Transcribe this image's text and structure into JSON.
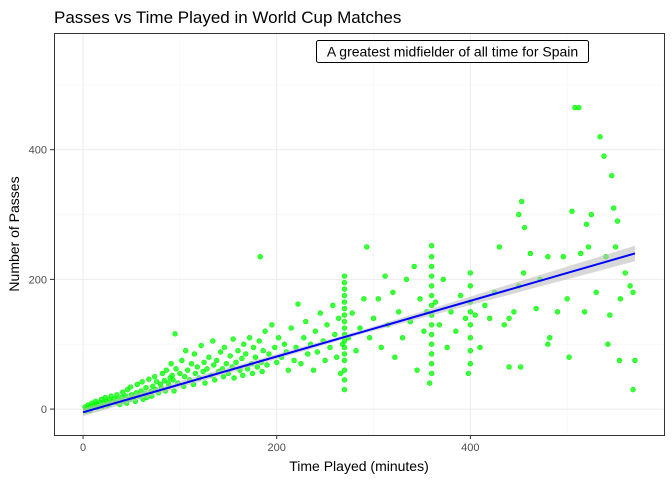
{
  "chart_data": {
    "type": "scatter",
    "title": "Passes vs Time Played in World Cup Matches",
    "xlabel": "Time Played (minutes)",
    "ylabel": "Number of Passes",
    "xlim": [
      -30,
      600
    ],
    "ylim": [
      -40,
      580
    ],
    "x_ticks": [
      0,
      200,
      400
    ],
    "y_ticks": [
      0,
      200,
      400
    ],
    "grid": true,
    "annotation": "A greatest midfielder of all time for Spain",
    "point_color": "#00ff00",
    "trend_color": "#0000ff",
    "band_color": "#bebebe",
    "trend": {
      "x": [
        0,
        570
      ],
      "y": [
        -5,
        240
      ]
    },
    "band_halfwidth": {
      "at_x": [
        0,
        285,
        570
      ],
      "value": [
        6,
        3,
        12
      ]
    },
    "points": [
      [
        2,
        3
      ],
      [
        4,
        0
      ],
      [
        3,
        -3
      ],
      [
        5,
        6
      ],
      [
        6,
        1
      ],
      [
        8,
        4
      ],
      [
        7,
        -2
      ],
      [
        10,
        5
      ],
      [
        9,
        9
      ],
      [
        12,
        3
      ],
      [
        14,
        8
      ],
      [
        15,
        2
      ],
      [
        13,
        12
      ],
      [
        16,
        6
      ],
      [
        18,
        10
      ],
      [
        20,
        4
      ],
      [
        19,
        15
      ],
      [
        22,
        9
      ],
      [
        24,
        12
      ],
      [
        25,
        6
      ],
      [
        23,
        18
      ],
      [
        27,
        14
      ],
      [
        28,
        8
      ],
      [
        30,
        11
      ],
      [
        29,
        20
      ],
      [
        32,
        16
      ],
      [
        34,
        10
      ],
      [
        35,
        22
      ],
      [
        36,
        14
      ],
      [
        38,
        7
      ],
      [
        40,
        18
      ],
      [
        42,
        12
      ],
      [
        41,
        26
      ],
      [
        44,
        20
      ],
      [
        45,
        9
      ],
      [
        46,
        30
      ],
      [
        48,
        15
      ],
      [
        50,
        22
      ],
      [
        49,
        34
      ],
      [
        52,
        18
      ],
      [
        54,
        12
      ],
      [
        55,
        25
      ],
      [
        56,
        38
      ],
      [
        58,
        20
      ],
      [
        60,
        28
      ],
      [
        62,
        15
      ],
      [
        61,
        42
      ],
      [
        64,
        24
      ],
      [
        65,
        33
      ],
      [
        66,
        18
      ],
      [
        68,
        46
      ],
      [
        70,
        27
      ],
      [
        72,
        35
      ],
      [
        71,
        20
      ],
      [
        74,
        50
      ],
      [
        75,
        30
      ],
      [
        76,
        42
      ],
      [
        78,
        25
      ],
      [
        80,
        38
      ],
      [
        82,
        55
      ],
      [
        81,
        32
      ],
      [
        84,
        44
      ],
      [
        85,
        28
      ],
      [
        86,
        60
      ],
      [
        88,
        40
      ],
      [
        90,
        48
      ],
      [
        89,
        35
      ],
      [
        91,
        70
      ],
      [
        92,
        52
      ],
      [
        93,
        45
      ],
      [
        95,
        116
      ],
      [
        94,
        28
      ],
      [
        96,
        62
      ],
      [
        98,
        40
      ],
      [
        100,
        55
      ],
      [
        102,
        75
      ],
      [
        104,
        35
      ],
      [
        105,
        50
      ],
      [
        106,
        90
      ],
      [
        108,
        60
      ],
      [
        110,
        45
      ],
      [
        112,
        70
      ],
      [
        114,
        38
      ],
      [
        115,
        85
      ],
      [
        116,
        55
      ],
      [
        118,
        65
      ],
      [
        120,
        48
      ],
      [
        122,
        98
      ],
      [
        124,
        58
      ],
      [
        125,
        72
      ],
      [
        126,
        40
      ],
      [
        128,
        62
      ],
      [
        130,
        80
      ],
      [
        132,
        52
      ],
      [
        134,
        105
      ],
      [
        135,
        68
      ],
      [
        136,
        45
      ],
      [
        138,
        75
      ],
      [
        140,
        58
      ],
      [
        142,
        88
      ],
      [
        144,
        62
      ],
      [
        145,
        50
      ],
      [
        146,
        95
      ],
      [
        148,
        70
      ],
      [
        150,
        55
      ],
      [
        152,
        82
      ],
      [
        154,
        65
      ],
      [
        155,
        108
      ],
      [
        156,
        48
      ],
      [
        158,
        72
      ],
      [
        160,
        90
      ],
      [
        162,
        60
      ],
      [
        164,
        78
      ],
      [
        165,
        52
      ],
      [
        166,
        100
      ],
      [
        168,
        85
      ],
      [
        170,
        62
      ],
      [
        172,
        110
      ],
      [
        174,
        70
      ],
      [
        175,
        55
      ],
      [
        176,
        95
      ],
      [
        178,
        80
      ],
      [
        180,
        65
      ],
      [
        182,
        105
      ],
      [
        183,
        235
      ],
      [
        184,
        72
      ],
      [
        185,
        58
      ],
      [
        186,
        90
      ],
      [
        188,
        120
      ],
      [
        190,
        68
      ],
      [
        192,
        85
      ],
      [
        195,
        130
      ],
      [
        198,
        95
      ],
      [
        200,
        72
      ],
      [
        202,
        110
      ],
      [
        205,
        80
      ],
      [
        208,
        100
      ],
      [
        210,
        88
      ],
      [
        212,
        60
      ],
      [
        215,
        125
      ],
      [
        218,
        75
      ],
      [
        220,
        95
      ],
      [
        222,
        162
      ],
      [
        225,
        70
      ],
      [
        228,
        110
      ],
      [
        230,
        135
      ],
      [
        232,
        85
      ],
      [
        235,
        100
      ],
      [
        238,
        60
      ],
      [
        240,
        120
      ],
      [
        242,
        88
      ],
      [
        245,
        148
      ],
      [
        248,
        105
      ],
      [
        250,
        75
      ],
      [
        252,
        130
      ],
      [
        255,
        95
      ],
      [
        258,
        160
      ],
      [
        260,
        115
      ],
      [
        262,
        80
      ],
      [
        264,
        140
      ],
      [
        266,
        55
      ],
      [
        268,
        100
      ],
      [
        270,
        30
      ],
      [
        270,
        45
      ],
      [
        270,
        60
      ],
      [
        270,
        75
      ],
      [
        270,
        85
      ],
      [
        270,
        95
      ],
      [
        270,
        105
      ],
      [
        270,
        115
      ],
      [
        270,
        125
      ],
      [
        270,
        135
      ],
      [
        270,
        145
      ],
      [
        270,
        155
      ],
      [
        270,
        165
      ],
      [
        270,
        175
      ],
      [
        270,
        185
      ],
      [
        270,
        195
      ],
      [
        270,
        205
      ],
      [
        274,
        110
      ],
      [
        278,
        148
      ],
      [
        282,
        90
      ],
      [
        286,
        125
      ],
      [
        290,
        170
      ],
      [
        293,
        250
      ],
      [
        296,
        110
      ],
      [
        300,
        140
      ],
      [
        305,
        170
      ],
      [
        308,
        95
      ],
      [
        312,
        205
      ],
      [
        315,
        130
      ],
      [
        320,
        180
      ],
      [
        322,
        80
      ],
      [
        326,
        150
      ],
      [
        330,
        110
      ],
      [
        334,
        200
      ],
      [
        338,
        135
      ],
      [
        342,
        220
      ],
      [
        345,
        60
      ],
      [
        348,
        170
      ],
      [
        352,
        120
      ],
      [
        355,
        150
      ],
      [
        358,
        40
      ],
      [
        360,
        55
      ],
      [
        360,
        70
      ],
      [
        360,
        85
      ],
      [
        360,
        100
      ],
      [
        360,
        115
      ],
      [
        360,
        130
      ],
      [
        360,
        145
      ],
      [
        360,
        160
      ],
      [
        360,
        175
      ],
      [
        360,
        190
      ],
      [
        360,
        205
      ],
      [
        360,
        220
      ],
      [
        360,
        235
      ],
      [
        360,
        252
      ],
      [
        364,
        165
      ],
      [
        368,
        130
      ],
      [
        372,
        200
      ],
      [
        376,
        95
      ],
      [
        380,
        150
      ],
      [
        385,
        120
      ],
      [
        390,
        175
      ],
      [
        395,
        140
      ],
      [
        398,
        55
      ],
      [
        400,
        70
      ],
      [
        400,
        90
      ],
      [
        400,
        110
      ],
      [
        400,
        130
      ],
      [
        400,
        150
      ],
      [
        400,
        165
      ],
      [
        400,
        190
      ],
      [
        400,
        210
      ],
      [
        405,
        145
      ],
      [
        410,
        95
      ],
      [
        415,
        160
      ],
      [
        420,
        140
      ],
      [
        425,
        180
      ],
      [
        430,
        250
      ],
      [
        435,
        130
      ],
      [
        440,
        65
      ],
      [
        440,
        140
      ],
      [
        445,
        150
      ],
      [
        450,
        300
      ],
      [
        450,
        190
      ],
      [
        452,
        65
      ],
      [
        453,
        320
      ],
      [
        455,
        210
      ],
      [
        456,
        280
      ],
      [
        462,
        240
      ],
      [
        468,
        155
      ],
      [
        472,
        200
      ],
      [
        480,
        100
      ],
      [
        480,
        235
      ],
      [
        482,
        110
      ],
      [
        490,
        150
      ],
      [
        496,
        235
      ],
      [
        500,
        170
      ],
      [
        502,
        80
      ],
      [
        505,
        305
      ],
      [
        508,
        465
      ],
      [
        512,
        465
      ],
      [
        514,
        240
      ],
      [
        518,
        150
      ],
      [
        520,
        285
      ],
      [
        522,
        250
      ],
      [
        525,
        300
      ],
      [
        530,
        180
      ],
      [
        534,
        420
      ],
      [
        538,
        390
      ],
      [
        540,
        235
      ],
      [
        542,
        100
      ],
      [
        544,
        145
      ],
      [
        546,
        360
      ],
      [
        548,
        310
      ],
      [
        550,
        250
      ],
      [
        552,
        290
      ],
      [
        554,
        75
      ],
      [
        555,
        170
      ],
      [
        560,
        210
      ],
      [
        565,
        190
      ],
      [
        568,
        180
      ],
      [
        570,
        75
      ],
      [
        568,
        30
      ]
    ]
  }
}
